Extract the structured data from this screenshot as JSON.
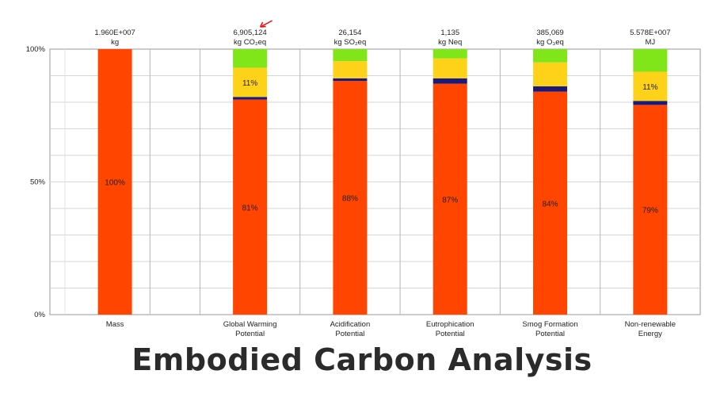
{
  "chart_data": {
    "type": "bar",
    "stacked": true,
    "title": "Embodied Carbon Analysis",
    "ylabel": "",
    "xlabel": "",
    "ylim": [
      0,
      100
    ],
    "y_ticks": [
      "0%",
      "50%",
      "100%"
    ],
    "grid": true,
    "categories": [
      {
        "label_lines": [
          "Mass"
        ],
        "total_lines": [
          "1.960E+007",
          "kg"
        ]
      },
      {
        "label_lines": [
          "Global Warming",
          "Potential"
        ],
        "total_lines": [
          "6,905,124",
          "kg CO₂eq"
        ]
      },
      {
        "label_lines": [
          "Acidification",
          "Potential"
        ],
        "total_lines": [
          "26,154",
          "kg SO₂eq"
        ]
      },
      {
        "label_lines": [
          "Eutrophication",
          "Potential"
        ],
        "total_lines": [
          "1,135",
          "kg Neq"
        ]
      },
      {
        "label_lines": [
          "Smog Formation",
          "Potential"
        ],
        "total_lines": [
          "385,069",
          "kg O₃eq"
        ]
      },
      {
        "label_lines": [
          "Non-renewable",
          "Energy"
        ],
        "total_lines": [
          "5.578E+007",
          "MJ"
        ]
      }
    ],
    "series": [
      {
        "name": "orange",
        "color": "#ff4500",
        "values": [
          100,
          81,
          88,
          87,
          84,
          79
        ]
      },
      {
        "name": "navy",
        "color": "#1a1a7a",
        "values": [
          0,
          1,
          1,
          2,
          2,
          1.5
        ]
      },
      {
        "name": "yellow",
        "color": "#ffd21a",
        "values": [
          0,
          11,
          6.5,
          7.5,
          9,
          11
        ]
      },
      {
        "name": "green",
        "color": "#80e619",
        "values": [
          0,
          7,
          4.5,
          3.5,
          5,
          8.5
        ]
      }
    ],
    "data_labels": [
      {
        "category": 0,
        "series": 0,
        "text": "100%"
      },
      {
        "category": 1,
        "series": 0,
        "text": "81%"
      },
      {
        "category": 1,
        "series": 2,
        "text": "11%"
      },
      {
        "category": 2,
        "series": 0,
        "text": "88%"
      },
      {
        "category": 3,
        "series": 0,
        "text": "87%"
      },
      {
        "category": 4,
        "series": 0,
        "text": "84%"
      },
      {
        "category": 5,
        "series": 0,
        "text": "79%"
      },
      {
        "category": 5,
        "series": 2,
        "text": "11%"
      }
    ],
    "annotation": {
      "type": "arrow",
      "color": "#ff0000",
      "target_category": 1
    }
  }
}
